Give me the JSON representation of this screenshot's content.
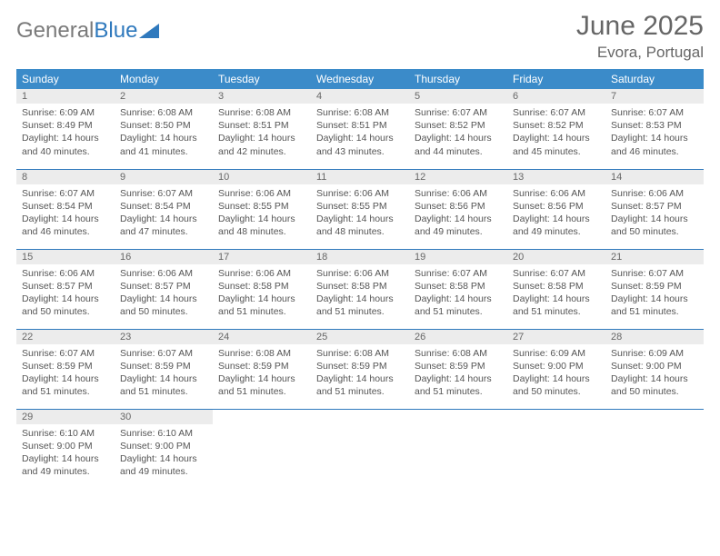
{
  "brand": {
    "part1": "General",
    "part2": "Blue"
  },
  "title": "June 2025",
  "location": "Evora, Portugal",
  "colors": {
    "header_bg": "#3b8bc9",
    "border": "#2f79bd",
    "daynum_bg": "#ececec",
    "text": "#555555",
    "title_text": "#666666"
  },
  "weekday_labels": [
    "Sunday",
    "Monday",
    "Tuesday",
    "Wednesday",
    "Thursday",
    "Friday",
    "Saturday"
  ],
  "weeks": [
    [
      {
        "n": "1",
        "sr": "Sunrise: 6:09 AM",
        "ss": "Sunset: 8:49 PM",
        "d1": "Daylight: 14 hours",
        "d2": "and 40 minutes."
      },
      {
        "n": "2",
        "sr": "Sunrise: 6:08 AM",
        "ss": "Sunset: 8:50 PM",
        "d1": "Daylight: 14 hours",
        "d2": "and 41 minutes."
      },
      {
        "n": "3",
        "sr": "Sunrise: 6:08 AM",
        "ss": "Sunset: 8:51 PM",
        "d1": "Daylight: 14 hours",
        "d2": "and 42 minutes."
      },
      {
        "n": "4",
        "sr": "Sunrise: 6:08 AM",
        "ss": "Sunset: 8:51 PM",
        "d1": "Daylight: 14 hours",
        "d2": "and 43 minutes."
      },
      {
        "n": "5",
        "sr": "Sunrise: 6:07 AM",
        "ss": "Sunset: 8:52 PM",
        "d1": "Daylight: 14 hours",
        "d2": "and 44 minutes."
      },
      {
        "n": "6",
        "sr": "Sunrise: 6:07 AM",
        "ss": "Sunset: 8:52 PM",
        "d1": "Daylight: 14 hours",
        "d2": "and 45 minutes."
      },
      {
        "n": "7",
        "sr": "Sunrise: 6:07 AM",
        "ss": "Sunset: 8:53 PM",
        "d1": "Daylight: 14 hours",
        "d2": "and 46 minutes."
      }
    ],
    [
      {
        "n": "8",
        "sr": "Sunrise: 6:07 AM",
        "ss": "Sunset: 8:54 PM",
        "d1": "Daylight: 14 hours",
        "d2": "and 46 minutes."
      },
      {
        "n": "9",
        "sr": "Sunrise: 6:07 AM",
        "ss": "Sunset: 8:54 PM",
        "d1": "Daylight: 14 hours",
        "d2": "and 47 minutes."
      },
      {
        "n": "10",
        "sr": "Sunrise: 6:06 AM",
        "ss": "Sunset: 8:55 PM",
        "d1": "Daylight: 14 hours",
        "d2": "and 48 minutes."
      },
      {
        "n": "11",
        "sr": "Sunrise: 6:06 AM",
        "ss": "Sunset: 8:55 PM",
        "d1": "Daylight: 14 hours",
        "d2": "and 48 minutes."
      },
      {
        "n": "12",
        "sr": "Sunrise: 6:06 AM",
        "ss": "Sunset: 8:56 PM",
        "d1": "Daylight: 14 hours",
        "d2": "and 49 minutes."
      },
      {
        "n": "13",
        "sr": "Sunrise: 6:06 AM",
        "ss": "Sunset: 8:56 PM",
        "d1": "Daylight: 14 hours",
        "d2": "and 49 minutes."
      },
      {
        "n": "14",
        "sr": "Sunrise: 6:06 AM",
        "ss": "Sunset: 8:57 PM",
        "d1": "Daylight: 14 hours",
        "d2": "and 50 minutes."
      }
    ],
    [
      {
        "n": "15",
        "sr": "Sunrise: 6:06 AM",
        "ss": "Sunset: 8:57 PM",
        "d1": "Daylight: 14 hours",
        "d2": "and 50 minutes."
      },
      {
        "n": "16",
        "sr": "Sunrise: 6:06 AM",
        "ss": "Sunset: 8:57 PM",
        "d1": "Daylight: 14 hours",
        "d2": "and 50 minutes."
      },
      {
        "n": "17",
        "sr": "Sunrise: 6:06 AM",
        "ss": "Sunset: 8:58 PM",
        "d1": "Daylight: 14 hours",
        "d2": "and 51 minutes."
      },
      {
        "n": "18",
        "sr": "Sunrise: 6:06 AM",
        "ss": "Sunset: 8:58 PM",
        "d1": "Daylight: 14 hours",
        "d2": "and 51 minutes."
      },
      {
        "n": "19",
        "sr": "Sunrise: 6:07 AM",
        "ss": "Sunset: 8:58 PM",
        "d1": "Daylight: 14 hours",
        "d2": "and 51 minutes."
      },
      {
        "n": "20",
        "sr": "Sunrise: 6:07 AM",
        "ss": "Sunset: 8:58 PM",
        "d1": "Daylight: 14 hours",
        "d2": "and 51 minutes."
      },
      {
        "n": "21",
        "sr": "Sunrise: 6:07 AM",
        "ss": "Sunset: 8:59 PM",
        "d1": "Daylight: 14 hours",
        "d2": "and 51 minutes."
      }
    ],
    [
      {
        "n": "22",
        "sr": "Sunrise: 6:07 AM",
        "ss": "Sunset: 8:59 PM",
        "d1": "Daylight: 14 hours",
        "d2": "and 51 minutes."
      },
      {
        "n": "23",
        "sr": "Sunrise: 6:07 AM",
        "ss": "Sunset: 8:59 PM",
        "d1": "Daylight: 14 hours",
        "d2": "and 51 minutes."
      },
      {
        "n": "24",
        "sr": "Sunrise: 6:08 AM",
        "ss": "Sunset: 8:59 PM",
        "d1": "Daylight: 14 hours",
        "d2": "and 51 minutes."
      },
      {
        "n": "25",
        "sr": "Sunrise: 6:08 AM",
        "ss": "Sunset: 8:59 PM",
        "d1": "Daylight: 14 hours",
        "d2": "and 51 minutes."
      },
      {
        "n": "26",
        "sr": "Sunrise: 6:08 AM",
        "ss": "Sunset: 8:59 PM",
        "d1": "Daylight: 14 hours",
        "d2": "and 51 minutes."
      },
      {
        "n": "27",
        "sr": "Sunrise: 6:09 AM",
        "ss": "Sunset: 9:00 PM",
        "d1": "Daylight: 14 hours",
        "d2": "and 50 minutes."
      },
      {
        "n": "28",
        "sr": "Sunrise: 6:09 AM",
        "ss": "Sunset: 9:00 PM",
        "d1": "Daylight: 14 hours",
        "d2": "and 50 minutes."
      }
    ],
    [
      {
        "n": "29",
        "sr": "Sunrise: 6:10 AM",
        "ss": "Sunset: 9:00 PM",
        "d1": "Daylight: 14 hours",
        "d2": "and 49 minutes."
      },
      {
        "n": "30",
        "sr": "Sunrise: 6:10 AM",
        "ss": "Sunset: 9:00 PM",
        "d1": "Daylight: 14 hours",
        "d2": "and 49 minutes."
      },
      {
        "empty": true
      },
      {
        "empty": true
      },
      {
        "empty": true
      },
      {
        "empty": true
      },
      {
        "empty": true
      }
    ]
  ]
}
